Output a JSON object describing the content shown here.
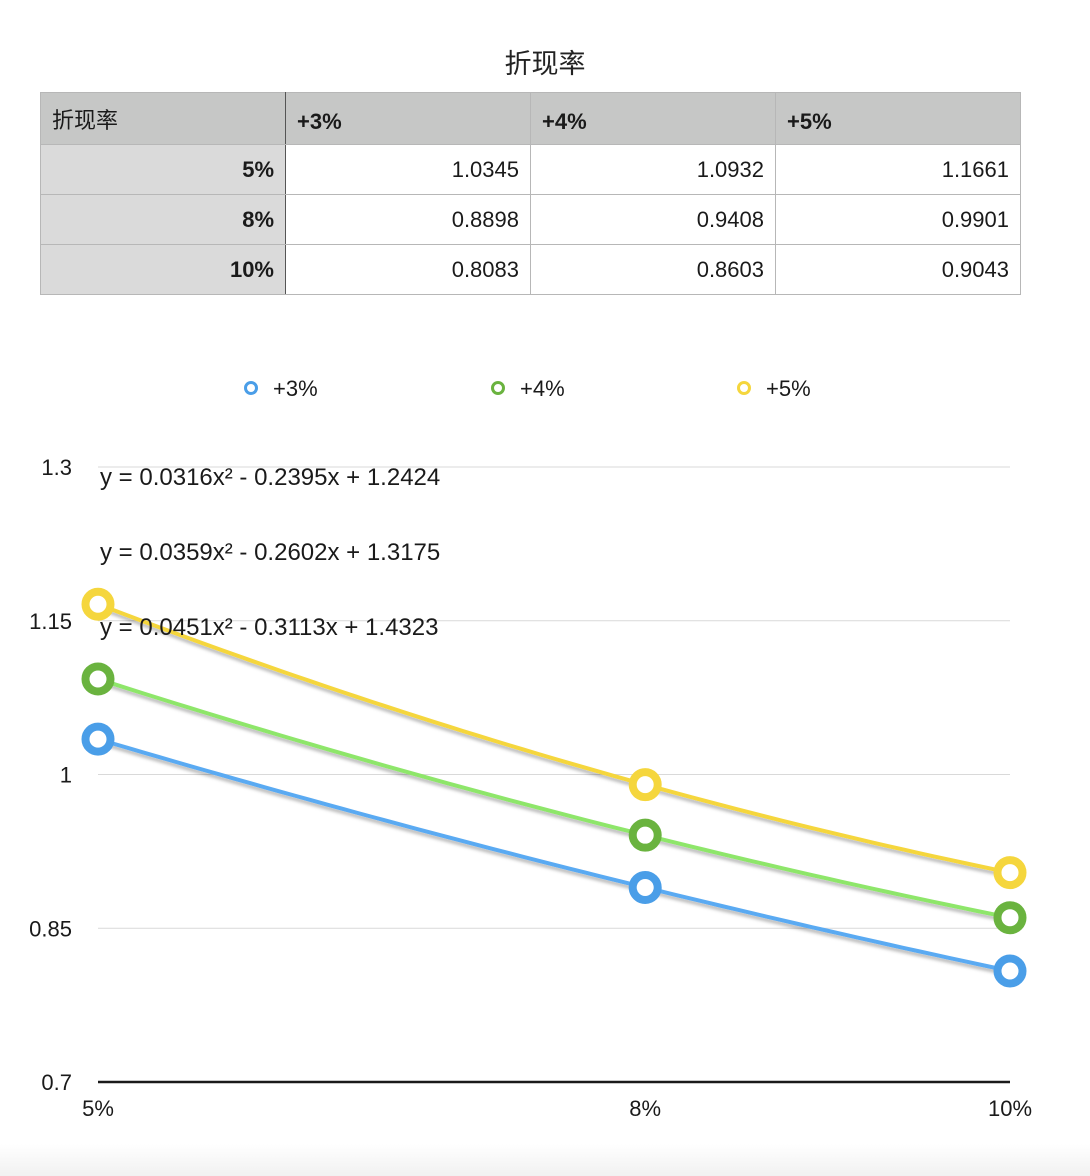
{
  "title": "折现率",
  "table": {
    "corner": "折现率",
    "columns": [
      "+3%",
      "+4%",
      "+5%"
    ],
    "rows": [
      {
        "label": "5%",
        "values": [
          "1.0345",
          "1.0932",
          "1.1661"
        ]
      },
      {
        "label": "8%",
        "values": [
          "0.8898",
          "0.9408",
          "0.9901"
        ]
      },
      {
        "label": "10%",
        "values": [
          "0.8083",
          "0.8603",
          "0.9043"
        ]
      }
    ]
  },
  "chart_data": {
    "type": "scatter",
    "x_categories": [
      "5%",
      "8%",
      "10%"
    ],
    "x": [
      5,
      8,
      10
    ],
    "series": [
      {
        "name": "+3%",
        "values": [
          1.0345,
          0.8898,
          0.8083
        ],
        "color": "#4a9ee8",
        "trend_color": "#5aaaf2",
        "trendline": "polynomial-2"
      },
      {
        "name": "+4%",
        "values": [
          1.0932,
          0.9408,
          0.8603
        ],
        "color": "#6ab33f",
        "trend_color": "#8ee66a",
        "trendline": "polynomial-2"
      },
      {
        "name": "+5%",
        "values": [
          1.1661,
          0.9901,
          0.9043
        ],
        "color": "#f5d63d",
        "trend_color": "#f5d63d",
        "trendline": "polynomial-2"
      }
    ],
    "equations": [
      "y = 0.0316x² - 0.2395x + 1.2424",
      "y = 0.0359x² - 0.2602x + 1.3175",
      "y = 0.0451x² - 0.3113x + 1.4323"
    ],
    "y_ticks": [
      "1.3",
      "1.15",
      "1",
      "0.85",
      "0.7"
    ],
    "y_tick_values": [
      1.3,
      1.15,
      1.0,
      0.85,
      0.7
    ],
    "ylim": [
      0.7,
      1.3
    ],
    "grid": true,
    "legend_position": "top"
  }
}
